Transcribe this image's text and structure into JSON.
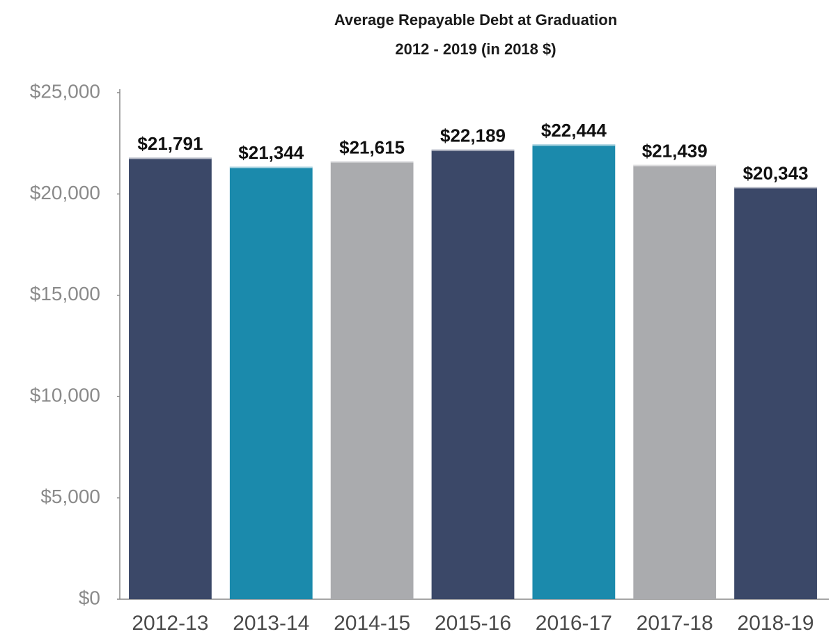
{
  "chart_data": {
    "type": "bar",
    "title": "Average Repayable Debt at Graduation",
    "subtitle": "2012 - 2019 (in 2018 $)",
    "categories": [
      "2012-13",
      "2013-14",
      "2014-15",
      "2015-16",
      "2016-17",
      "2017-18",
      "2018-19"
    ],
    "values": [
      21791,
      21344,
      21615,
      22189,
      22444,
      21439,
      20343
    ],
    "value_labels": [
      "$21,791",
      "$21,344",
      "$21,615",
      "$22,189",
      "$22,444",
      "$21,439",
      "$20,343"
    ],
    "colors": [
      "#3b4868",
      "#1b8aac",
      "#aaabae",
      "#3b4868",
      "#1b8aac",
      "#aaabae",
      "#3b4868"
    ],
    "ylim": [
      0,
      25000
    ],
    "yticks": [
      {
        "value": 0,
        "label": "$0"
      },
      {
        "value": 5000,
        "label": "$5,000"
      },
      {
        "value": 10000,
        "label": "$10,000"
      },
      {
        "value": 15000,
        "label": "$15,000"
      },
      {
        "value": 20000,
        "label": "$20,000"
      },
      {
        "value": 25000,
        "label": "$25,000"
      }
    ],
    "grid": false
  }
}
